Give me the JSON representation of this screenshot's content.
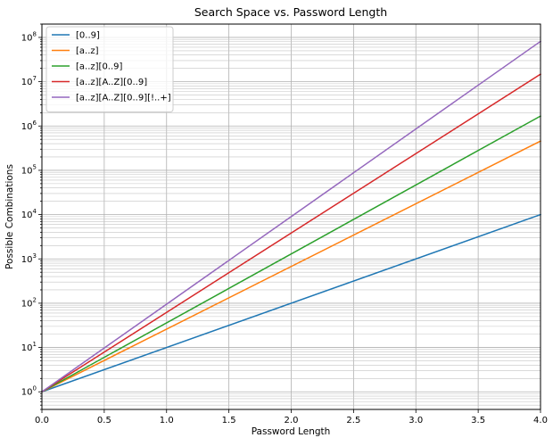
{
  "chart_data": {
    "type": "line",
    "title": "Search Space vs. Password Length",
    "xlabel": "Password Length",
    "ylabel": "Possible Combinations",
    "xlim": [
      0.0,
      4.0
    ],
    "ylim": [
      0.4,
      200000000
    ],
    "yscale": "log",
    "grid": "major and minor",
    "legend_position": "top-left",
    "x_ticks": [
      "0.0",
      "0.5",
      "1.0",
      "1.5",
      "2.0",
      "2.5",
      "3.0",
      "3.5",
      "4.0"
    ],
    "x_tick_values": [
      0.0,
      0.5,
      1.0,
      1.5,
      2.0,
      2.5,
      3.0,
      3.5,
      4.0
    ],
    "y_tick_exponents": [
      "0",
      "1",
      "2",
      "3",
      "4",
      "5",
      "6",
      "7",
      "8"
    ],
    "x": [
      0.0,
      4.0
    ],
    "series": [
      {
        "name": "[0..9]",
        "base": 10,
        "color": "#1f77b4",
        "values": [
          1,
          10000
        ]
      },
      {
        "name": "[a..z]",
        "base": 26,
        "color": "#ff7f0e",
        "values": [
          1,
          456976
        ]
      },
      {
        "name": "[a..z][0..9]",
        "base": 36,
        "color": "#2ca02c",
        "values": [
          1,
          1679616
        ]
      },
      {
        "name": "[a..z][A..Z][0..9]",
        "base": 62,
        "color": "#d62728",
        "values": [
          1,
          14776336
        ]
      },
      {
        "name": "[a..z][A..Z][0..9][!..+]",
        "base": 95,
        "color": "#9467bd",
        "values": [
          1,
          81450625
        ]
      }
    ]
  }
}
